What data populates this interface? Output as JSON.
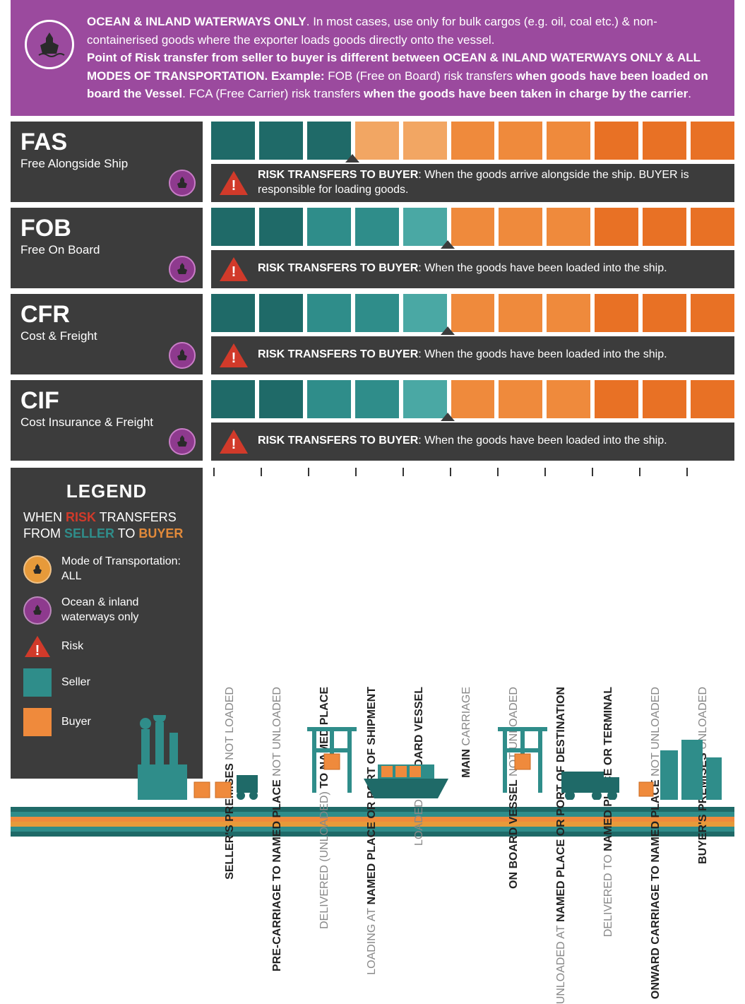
{
  "colors": {
    "purple": "#9b4a9e",
    "darkgray": "#3c3c3c",
    "teal_dark": "#1f6a68",
    "teal_mid": "#2f8d8a",
    "teal_light": "#4aa8a4",
    "orange_light": "#f2a663",
    "orange": "#ef8a3c",
    "orange_dark": "#e87125",
    "red": "#d13a2a",
    "badge_purple": "#8e3a8e",
    "badge_border": "#c97dc7",
    "mode_orange": "#e79a3a"
  },
  "header": {
    "line1_bold": "OCEAN & INLAND WATERWAYS ONLY",
    "line1_rest": ". In most cases, use only for bulk cargos (e.g. oil, coal etc.) & non-containerised goods where the exporter loads goods directly onto the vessel.",
    "line2_bold1": "Point of Risk transfer from seller to buyer is different between OCEAN & INLAND WATERWAYS ONLY & ALL MODES OF TRANSPORTATION.  Example: ",
    "line2_mid": "FOB (Free on Board) risk transfers ",
    "line2_bold2": "when goods have been loaded on board the Vessel",
    "line2_mid2": ". FCA (Free Carrier) risk transfers ",
    "line2_bold3": "when the goods have been taken in charge by the carrier",
    "line2_end": "."
  },
  "terms": [
    {
      "code": "FAS",
      "name": "Free Alongside Ship",
      "risk_title": "RISK TRANSFERS TO BUYER",
      "risk_text": ": When the goods arrive alongside the ship. BUYER is responsible for loading goods.",
      "seller_squares": 3,
      "transition_at": 3,
      "square_colors": [
        "#1f6a68",
        "#1f6a68",
        "#1f6a68",
        "#f2a663",
        "#f2a663",
        "#ef8a3c",
        "#ef8a3c",
        "#ef8a3c",
        "#e87125",
        "#e87125",
        "#e87125"
      ]
    },
    {
      "code": "FOB",
      "name": "Free On Board",
      "risk_title": "RISK TRANSFERS TO BUYER",
      "risk_text": ": When the goods have been loaded into the ship.",
      "seller_squares": 5,
      "transition_at": 5,
      "square_colors": [
        "#1f6a68",
        "#1f6a68",
        "#2f8d8a",
        "#2f8d8a",
        "#4aa8a4",
        "#ef8a3c",
        "#ef8a3c",
        "#ef8a3c",
        "#e87125",
        "#e87125",
        "#e87125"
      ]
    },
    {
      "code": "CFR",
      "name": "Cost & Freight",
      "risk_title": "RISK TRANSFERS TO BUYER",
      "risk_text": ": When the goods have been loaded into the ship.",
      "seller_squares": 5,
      "transition_at": 5,
      "square_colors": [
        "#1f6a68",
        "#1f6a68",
        "#2f8d8a",
        "#2f8d8a",
        "#4aa8a4",
        "#ef8a3c",
        "#ef8a3c",
        "#ef8a3c",
        "#e87125",
        "#e87125",
        "#e87125"
      ]
    },
    {
      "code": "CIF",
      "name": "Cost Insurance & Freight",
      "risk_title": "RISK TRANSFERS TO BUYER",
      "risk_text": ": When the goods have been loaded into the ship.",
      "seller_squares": 5,
      "transition_at": 5,
      "square_colors": [
        "#1f6a68",
        "#1f6a68",
        "#2f8d8a",
        "#2f8d8a",
        "#4aa8a4",
        "#ef8a3c",
        "#ef8a3c",
        "#ef8a3c",
        "#e87125",
        "#e87125",
        "#e87125"
      ]
    }
  ],
  "legend": {
    "title": "LEGEND",
    "subtitle_prefix": "WHEN ",
    "subtitle_risk": "RISK",
    "subtitle_mid1": " TRANSFERS FROM ",
    "subtitle_seller": "SELLER",
    "subtitle_mid2": " TO ",
    "subtitle_buyer": "BUYER",
    "items": [
      {
        "type": "circle",
        "bg": "#e79a3a",
        "label": "Mode of Transportation: ALL"
      },
      {
        "type": "circle",
        "bg": "#8e3a8e",
        "label": "Ocean & inland waterways only"
      },
      {
        "type": "triangle",
        "bg": "#d13a2a",
        "label": "Risk"
      },
      {
        "type": "square",
        "bg": "#2f8d8a",
        "label": "Seller"
      },
      {
        "type": "square",
        "bg": "#ef8a3c",
        "label": "Buyer"
      }
    ]
  },
  "stages": [
    {
      "bold": "SELLER'S PREMISES",
      "light": "NOT LOADED"
    },
    {
      "bold": "PRE-CARRIAGE TO NAMED PLACE",
      "light": "NOT UNLOADED"
    },
    {
      "light": "DELIVERED (UNLOADED)",
      "bold": "TO NAMED PLACE"
    },
    {
      "light": "LOADING AT",
      "bold": "NAMED PLACE OR PORT OF SHIPMENT",
      "light2": ""
    },
    {
      "light": "LOADED ON",
      "bold": "BOARD VESSEL"
    },
    {
      "bold": "MAIN",
      "light": "CARRIAGE"
    },
    {
      "bold": "ON BOARD VESSEL",
      "light": "NOT UNLOADED"
    },
    {
      "light": "UNLOADED AT",
      "bold": "NAMED PLACE OR PORT OF DESTINATION"
    },
    {
      "light": "DELIVERED TO",
      "bold": "NAMED PLACE OR TERMINAL"
    },
    {
      "bold": "ONWARD CARRIAGE TO NAMED PLACE",
      "light": "NOT UNLOADED"
    },
    {
      "bold": "BUYER'S PREMISES",
      "light": "UNLOADED"
    }
  ],
  "layout": {
    "num_squares": 11,
    "stage_width": 67
  },
  "water": {
    "stripes": [
      "#1f6a68",
      "#2f8d8a",
      "#ef8a3c",
      "#e79a3a",
      "#2f8d8a",
      "#1f6a68"
    ]
  }
}
